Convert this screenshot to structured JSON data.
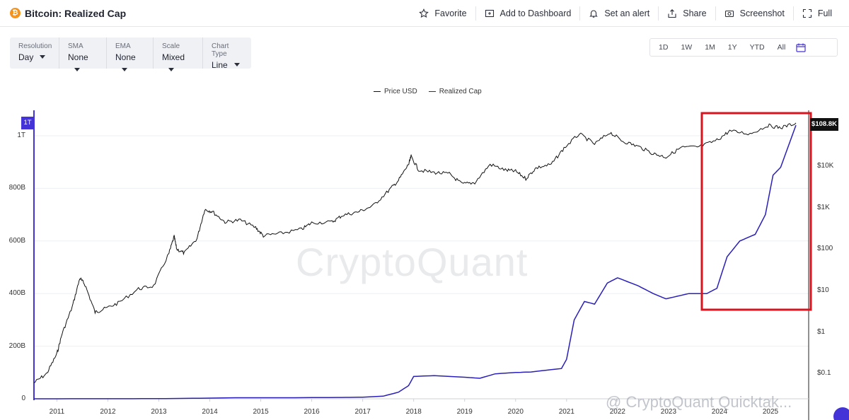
{
  "header": {
    "coin_symbol": "₿",
    "title": "Bitcoin: Realized Cap",
    "actions": [
      {
        "label": "Favorite",
        "icon": "star-icon"
      },
      {
        "label": "Add to Dashboard",
        "icon": "dashboard-icon"
      },
      {
        "label": "Set an alert",
        "icon": "bell-icon"
      },
      {
        "label": "Share",
        "icon": "share-icon"
      },
      {
        "label": "Screenshot",
        "icon": "camera-icon"
      },
      {
        "label": "Full",
        "icon": "fullscreen-icon"
      }
    ]
  },
  "controls": [
    {
      "label": "Resolution",
      "value": "Day"
    },
    {
      "label": "SMA",
      "value": "None"
    },
    {
      "label": "EMA",
      "value": "None"
    },
    {
      "label": "Scale",
      "value": "Mixed"
    },
    {
      "label": "Chart Type",
      "value": "Line"
    }
  ],
  "ranges": [
    "1D",
    "1W",
    "1M",
    "1Y",
    "YTD",
    "All"
  ],
  "calendar_icon": "calendar-icon",
  "colors": {
    "accent": "#4433d6",
    "price_line": "#111111",
    "realized_line": "#2a1fb8",
    "highlight": "#d9141f",
    "brand_orange": "#f7931a"
  },
  "watermark": "CryptoQuant",
  "handle": "@ CryptoQuant Quicktak...",
  "chart_data": {
    "type": "line",
    "legend_position": "top-center",
    "grid": true,
    "x": [
      "2011",
      "2012",
      "2013",
      "2014",
      "2015",
      "2016",
      "2017",
      "2018",
      "2019",
      "2020",
      "2021",
      "2022",
      "2023",
      "2024",
      "2025"
    ],
    "left_axis": {
      "ticks": [
        "0",
        "200B",
        "400B",
        "600B",
        "800B",
        "1T"
      ],
      "ylim": [
        0,
        1040
      ],
      "units": "billion USD",
      "current_tag": "1T"
    },
    "right_axis": {
      "ticks": [
        "$0.1",
        "$1",
        "$10",
        "$100",
        "$1K",
        "$10K"
      ],
      "scale": "log",
      "current_tag": "$108.8K"
    },
    "series": [
      {
        "name": "Price USD",
        "axis": "right",
        "points": [
          [
            2010.55,
            0.06
          ],
          [
            2010.8,
            0.1
          ],
          [
            2011.0,
            0.3
          ],
          [
            2011.1,
            0.9
          ],
          [
            2011.3,
            4
          ],
          [
            2011.45,
            20
          ],
          [
            2011.55,
            14
          ],
          [
            2011.75,
            3
          ],
          [
            2011.9,
            3.5
          ],
          [
            2012.2,
            5
          ],
          [
            2012.6,
            11
          ],
          [
            2012.9,
            13
          ],
          [
            2013.2,
            80
          ],
          [
            2013.3,
            200
          ],
          [
            2013.35,
            100
          ],
          [
            2013.5,
            80
          ],
          [
            2013.75,
            180
          ],
          [
            2013.9,
            900
          ],
          [
            2014.05,
            800
          ],
          [
            2014.3,
            450
          ],
          [
            2014.6,
            500
          ],
          [
            2014.9,
            330
          ],
          [
            2015.05,
            210
          ],
          [
            2015.4,
            240
          ],
          [
            2015.8,
            300
          ],
          [
            2016.0,
            430
          ],
          [
            2016.4,
            450
          ],
          [
            2016.6,
            650
          ],
          [
            2016.9,
            780
          ],
          [
            2017.2,
            1100
          ],
          [
            2017.5,
            2500
          ],
          [
            2017.7,
            4500
          ],
          [
            2017.9,
            11000
          ],
          [
            2017.95,
            17000
          ],
          [
            2018.1,
            8000
          ],
          [
            2018.4,
            7000
          ],
          [
            2018.7,
            6500
          ],
          [
            2018.95,
            3700
          ],
          [
            2019.2,
            4000
          ],
          [
            2019.5,
            11000
          ],
          [
            2019.8,
            8000
          ],
          [
            2020.0,
            7500
          ],
          [
            2020.2,
            5000
          ],
          [
            2020.4,
            9000
          ],
          [
            2020.7,
            11000
          ],
          [
            2020.95,
            27000
          ],
          [
            2021.25,
            60000
          ],
          [
            2021.55,
            34000
          ],
          [
            2021.85,
            65000
          ],
          [
            2022.1,
            40000
          ],
          [
            2022.4,
            30000
          ],
          [
            2022.7,
            20000
          ],
          [
            2022.95,
            16500
          ],
          [
            2023.25,
            28000
          ],
          [
            2023.6,
            29000
          ],
          [
            2023.95,
            42000
          ],
          [
            2024.2,
            70000
          ],
          [
            2024.6,
            60000
          ],
          [
            2024.95,
            95000
          ],
          [
            2025.2,
            84000
          ],
          [
            2025.5,
            108800
          ]
        ]
      },
      {
        "name": "Realized Cap",
        "axis": "left",
        "points": [
          [
            2010.55,
            0
          ],
          [
            2012.0,
            0.3
          ],
          [
            2013.0,
            0.5
          ],
          [
            2013.8,
            2
          ],
          [
            2014.5,
            4
          ],
          [
            2015.5,
            4
          ],
          [
            2016.5,
            5
          ],
          [
            2017.0,
            6
          ],
          [
            2017.4,
            10
          ],
          [
            2017.7,
            25
          ],
          [
            2017.9,
            50
          ],
          [
            2018.0,
            85
          ],
          [
            2018.4,
            88
          ],
          [
            2019.0,
            82
          ],
          [
            2019.3,
            78
          ],
          [
            2019.6,
            95
          ],
          [
            2020.0,
            100
          ],
          [
            2020.3,
            102
          ],
          [
            2020.9,
            115
          ],
          [
            2021.0,
            150
          ],
          [
            2021.15,
            300
          ],
          [
            2021.35,
            370
          ],
          [
            2021.55,
            360
          ],
          [
            2021.8,
            440
          ],
          [
            2022.0,
            460
          ],
          [
            2022.4,
            430
          ],
          [
            2022.7,
            400
          ],
          [
            2022.95,
            380
          ],
          [
            2023.4,
            400
          ],
          [
            2023.75,
            400
          ],
          [
            2023.95,
            420
          ],
          [
            2024.15,
            540
          ],
          [
            2024.4,
            600
          ],
          [
            2024.7,
            625
          ],
          [
            2024.9,
            700
          ],
          [
            2025.05,
            850
          ],
          [
            2025.2,
            880
          ],
          [
            2025.5,
            1040
          ]
        ]
      }
    ],
    "highlight_box": {
      "x_range": [
        2023.8,
        2025.8
      ],
      "color": "#d9141f"
    }
  }
}
